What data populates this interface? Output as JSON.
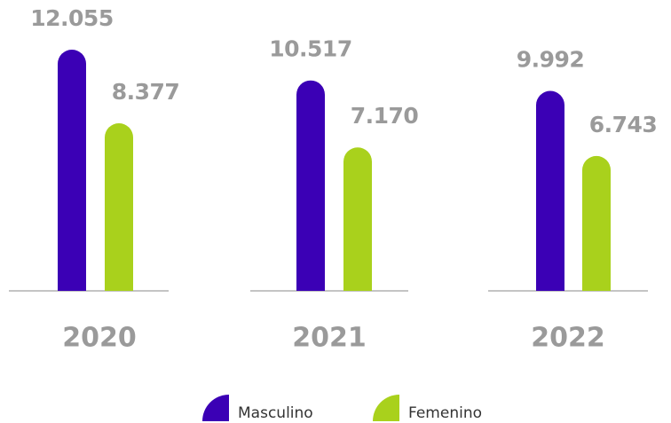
{
  "chart_data": {
    "type": "bar",
    "categories": [
      "2020",
      "2021",
      "2022"
    ],
    "series": [
      {
        "name": "Masculino",
        "color": "#3b00b5",
        "values": [
          12055,
          10517,
          9992
        ],
        "value_labels": [
          "12.055",
          "10.517",
          "9.992"
        ]
      },
      {
        "name": "Femenino",
        "color": "#a9d11c",
        "values": [
          8377,
          7170,
          6743
        ],
        "value_labels": [
          "8.377",
          "7.170",
          "6.743"
        ]
      }
    ]
  }
}
